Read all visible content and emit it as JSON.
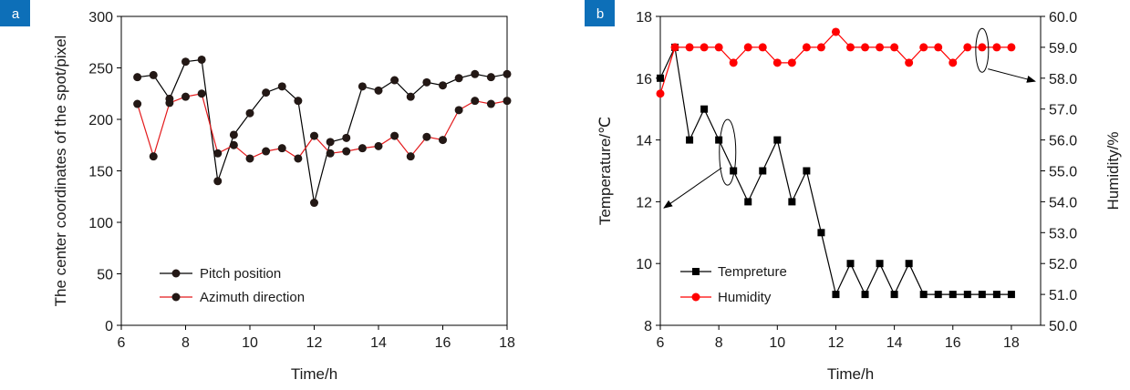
{
  "chart_data": [
    {
      "panel": "a",
      "type": "line",
      "xlabel": "Time/h",
      "ylabel": "The center coordinates of the spot/pixel",
      "xlim": [
        6,
        18
      ],
      "ylim": [
        0,
        300
      ],
      "xticks": [
        "6",
        "8",
        "10",
        "12",
        "14",
        "16",
        "18"
      ],
      "yticks": [
        "0",
        "50",
        "100",
        "150",
        "200",
        "250",
        "300"
      ],
      "legend_position": "bottom-left",
      "series": [
        {
          "name": "Pitch position",
          "color": "#000000",
          "marker": "circle",
          "x": [
            6.5,
            7,
            7.5,
            8,
            8.5,
            9,
            9.5,
            10,
            10.5,
            11,
            11.5,
            12,
            12.5,
            13,
            13.5,
            14,
            14.5,
            15,
            15.5,
            16,
            16.5,
            17,
            17.5,
            18
          ],
          "y": [
            241,
            243,
            220,
            256,
            258,
            140,
            185,
            206,
            226,
            232,
            218,
            119,
            178,
            182,
            232,
            228,
            238,
            222,
            236,
            233,
            240,
            244,
            241,
            244
          ]
        },
        {
          "name": "Azimuth direction",
          "color": "#e31a1c",
          "marker": "circle",
          "x": [
            6.5,
            7,
            7.5,
            8,
            8.5,
            9,
            9.5,
            10,
            10.5,
            11,
            11.5,
            12,
            12.5,
            13,
            13.5,
            14,
            14.5,
            15,
            15.5,
            16,
            16.5,
            17,
            17.5,
            18
          ],
          "y": [
            215,
            164,
            216,
            222,
            225,
            167,
            175,
            162,
            169,
            172,
            162,
            184,
            167,
            169,
            172,
            174,
            184,
            164,
            183,
            180,
            209,
            218,
            215,
            218
          ]
        }
      ]
    },
    {
      "panel": "b",
      "type": "line",
      "xlabel": "Time/h",
      "ylabel_left": "Temperature/℃",
      "ylabel_right": "Humidity/%",
      "xlim": [
        6,
        19
      ],
      "ylim_left": [
        8,
        18
      ],
      "ylim_right": [
        50,
        60
      ],
      "xticks": [
        "6",
        "8",
        "10",
        "12",
        "14",
        "16",
        "18"
      ],
      "yticks_left": [
        "8",
        "10",
        "12",
        "14",
        "16",
        "18"
      ],
      "yticks_right": [
        "50.0",
        "51.0",
        "52.0",
        "53.0",
        "54.0",
        "55.0",
        "56.0",
        "57.0",
        "58.0",
        "59.0",
        "60.0"
      ],
      "legend_position": "bottom-left",
      "series": [
        {
          "name": "Tempreture",
          "axis": "left",
          "color": "#000000",
          "marker": "square",
          "x": [
            6,
            6.5,
            7,
            7.5,
            8,
            8.5,
            9,
            9.5,
            10,
            10.5,
            11,
            11.5,
            12,
            12.5,
            13,
            13.5,
            14,
            14.5,
            15,
            15.5,
            16,
            16.5,
            17,
            17.5,
            18
          ],
          "y": [
            16,
            17,
            14,
            15,
            14,
            13,
            12,
            13,
            14,
            12,
            13,
            11,
            9,
            10,
            9,
            10,
            9,
            10,
            9,
            9,
            9,
            9,
            9,
            9,
            9
          ]
        },
        {
          "name": "Humidity",
          "axis": "right",
          "color": "#ff0000",
          "marker": "circle",
          "x": [
            6,
            6.5,
            7,
            7.5,
            8,
            8.5,
            9,
            9.5,
            10,
            10.5,
            11,
            11.5,
            12,
            12.5,
            13,
            13.5,
            14,
            14.5,
            15,
            15.5,
            16,
            16.5,
            17,
            17.5,
            18
          ],
          "y": [
            57.5,
            59,
            59,
            59,
            59,
            58.5,
            59,
            59,
            58.5,
            58.5,
            59,
            59,
            59.5,
            59,
            59,
            59,
            59,
            58.5,
            59,
            59,
            58.5,
            59,
            59,
            59,
            59
          ]
        }
      ]
    }
  ],
  "colors": {
    "panel_label_bg": "#0d6fb8",
    "axis": "#000000"
  }
}
